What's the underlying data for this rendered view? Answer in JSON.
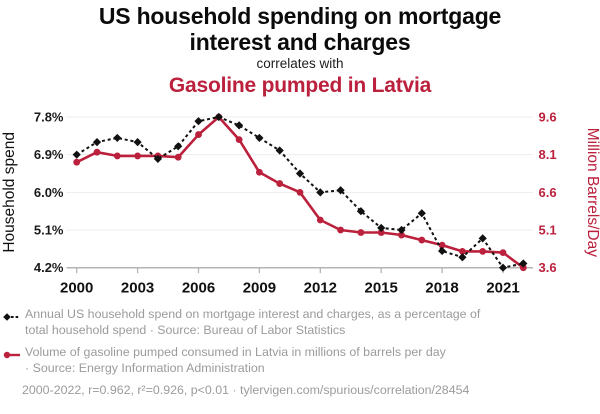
{
  "header": {
    "title": "US household spending on mortgage interest and charges",
    "connector": "correlates with",
    "subtitle": "Gasoline pumped in Latvia"
  },
  "chart_data": {
    "type": "line",
    "title": "US household spending on mortgage interest and charges correlates with Gasoline pumped in Latvia",
    "x": [
      2000,
      2001,
      2002,
      2003,
      2004,
      2005,
      2006,
      2007,
      2008,
      2009,
      2010,
      2011,
      2012,
      2013,
      2014,
      2015,
      2016,
      2017,
      2018,
      2019,
      2020,
      2021,
      2022
    ],
    "x_ticks": [
      2000,
      2003,
      2006,
      2009,
      2012,
      2015,
      2018,
      2021
    ],
    "grid": true,
    "legend_position": "below",
    "left_axis": {
      "label": "Household spend",
      "range": [
        4.2,
        7.8
      ],
      "tick_values": [
        7.8,
        6.9,
        6.0,
        5.1,
        4.2
      ],
      "tick_labels": [
        "7.8%",
        "6.9%",
        "6.0%",
        "5.1%",
        "4.2%"
      ]
    },
    "right_axis": {
      "label": "Million Barrels/Day",
      "range": [
        3.6,
        9.6
      ],
      "tick_values": [
        9.6,
        8.1,
        6.6,
        5.1,
        3.6
      ],
      "tick_labels": [
        "9.6",
        "8.1",
        "6.6",
        "5.1",
        "3.6"
      ]
    },
    "series": [
      {
        "name": "Annual US household spend on mortgage interest and charges, as a percentage of total household spend",
        "axis": "left",
        "color": "#111111",
        "line": "dashed",
        "marker": "diamond",
        "values": [
          6.9,
          7.2,
          7.3,
          7.2,
          6.8,
          7.1,
          7.7,
          7.8,
          7.6,
          7.3,
          7.0,
          6.45,
          6.0,
          6.05,
          5.55,
          5.15,
          5.1,
          5.5,
          4.6,
          4.45,
          4.9,
          4.2,
          4.3
        ]
      },
      {
        "name": "Volume of gasoline pumped consumed in Latvia in millions of barrels per day",
        "axis": "right",
        "color": "#bb203c",
        "line": "solid",
        "marker": "circle",
        "values": [
          7.8,
          8.2,
          8.05,
          8.05,
          8.05,
          8.0,
          8.9,
          9.6,
          8.7,
          7.4,
          6.95,
          6.6,
          5.5,
          5.1,
          5.0,
          5.0,
          4.9,
          4.7,
          4.5,
          4.25,
          4.25,
          4.2,
          3.6
        ]
      }
    ]
  },
  "legend": {
    "entries": [
      {
        "lines": [
          "Annual US household spend on mortgage interest and charges, as a percentage of",
          "total household spend · Source: Bureau of Labor Statistics"
        ]
      },
      {
        "lines": [
          "Volume of gasoline pumped consumed in Latvia in millions of barrels per day",
          "· Source: Energy Information Administration"
        ]
      }
    ]
  },
  "footer": {
    "text": "2000-2022, r=0.962, r²=0.926, p<0.01 · tylervigen.com/spurious/correlation/28454"
  },
  "colors": {
    "accent_red": "#bb203c",
    "series_black": "#111111",
    "legend_gray": "#9b9b9b",
    "grid": "#ededed",
    "axis": "#b4b4b4"
  }
}
